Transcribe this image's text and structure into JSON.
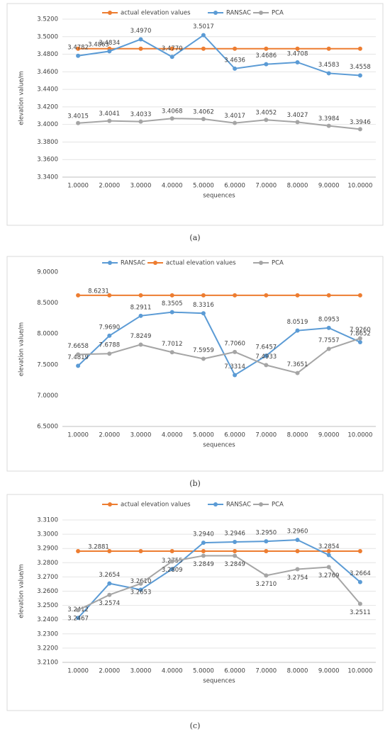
{
  "chart_data": [
    {
      "type": "line",
      "caption": "(a)",
      "ylabel": "elevation value/m",
      "xlabel": "sequences",
      "categories": [
        "1.0000",
        "2.0000",
        "3.0000",
        "4.0000",
        "5.0000",
        "6.0000",
        "7.0000",
        "8.0000",
        "9.0000",
        "10.0000"
      ],
      "ylim": [
        3.34,
        3.52
      ],
      "grid": true,
      "yticks": [
        {
          "value": 3.34,
          "label": "3.3400"
        },
        {
          "value": 3.36,
          "label": "3.3600"
        },
        {
          "value": 3.38,
          "label": "3.3800"
        },
        {
          "value": 3.4,
          "label": "3.4000"
        },
        {
          "value": 3.42,
          "label": "3.4200"
        },
        {
          "value": 3.44,
          "label": "3.4400"
        },
        {
          "value": 3.46,
          "label": "3.4600"
        },
        {
          "value": 3.48,
          "label": "3.4800"
        },
        {
          "value": 3.5,
          "label": "3.5000"
        },
        {
          "value": 3.52,
          "label": "3.5200"
        }
      ],
      "series": [
        {
          "name": "actual elevation values",
          "color": "#ed7d31",
          "values": [
            3.4863,
            3.4863,
            3.4863,
            3.4863,
            3.4863,
            3.4863,
            3.4863,
            3.4863,
            3.4863,
            3.4863
          ],
          "value_labels": [
            "3.4863",
            null,
            null,
            null,
            null,
            null,
            null,
            null,
            null,
            null
          ]
        },
        {
          "name": "RANSAC",
          "color": "#5b9bd5",
          "values": [
            3.4782,
            3.4834,
            3.497,
            3.477,
            3.5017,
            3.4636,
            3.4686,
            3.4708,
            3.4583,
            3.4558
          ],
          "value_labels": [
            "3.4782",
            "3.4834",
            "3.4970",
            "3.4770",
            "3.5017",
            "3.4636",
            "3.4686",
            "3.4708",
            "3.4583",
            "3.4558"
          ]
        },
        {
          "name": "PCA",
          "color": "#a5a5a5",
          "values": [
            3.4015,
            3.4041,
            3.4033,
            3.4068,
            3.4062,
            3.4017,
            3.4052,
            3.4027,
            3.3984,
            3.3946
          ],
          "value_labels": [
            "3.4015",
            "3.4041",
            "3.4033",
            "3.4068",
            "3.4062",
            "3.4017",
            "3.4052",
            "3.4027",
            "3.3984",
            "3.3946"
          ]
        }
      ]
    },
    {
      "type": "line",
      "caption": "(b)",
      "ylabel": "elevation value/m",
      "xlabel": "sequences",
      "categories": [
        "1.0000",
        "2.0000",
        "3.0000",
        "4.0000",
        "5.0000",
        "6.0000",
        "7.0000",
        "8.0000",
        "9.0000",
        "10.0000"
      ],
      "ylim": [
        6.5,
        9.0
      ],
      "grid": false,
      "yticks": [
        {
          "value": 6.5,
          "label": "6.5000"
        },
        {
          "value": 7.0,
          "label": "7.0000"
        },
        {
          "value": 7.5,
          "label": "7.5000"
        },
        {
          "value": 8.0,
          "label": "8.0000"
        },
        {
          "value": 8.5,
          "label": "8.5000"
        },
        {
          "value": 9.0,
          "label": "9.0000"
        }
      ],
      "series": [
        {
          "name": "RANSAC",
          "color": "#5b9bd5",
          "values": [
            7.4819,
            7.969,
            8.2911,
            8.3505,
            8.3316,
            7.3314,
            7.6457,
            8.0519,
            8.0953,
            7.8652
          ],
          "value_labels": [
            "7.4819",
            "7.9690",
            "8.2911",
            "8.3505",
            "8.3316",
            "7.3314",
            "7.6457",
            "8.0519",
            "8.0953",
            "7.8652"
          ]
        },
        {
          "name": "actual elevation values",
          "color": "#ed7d31",
          "values": [
            8.6231,
            8.6231,
            8.6231,
            8.6231,
            8.6231,
            8.6231,
            8.6231,
            8.6231,
            8.6231,
            8.6231
          ],
          "value_labels": [
            "8.6231",
            null,
            null,
            null,
            null,
            null,
            null,
            null,
            null,
            null
          ]
        },
        {
          "name": "PCA",
          "color": "#a5a5a5",
          "values": [
            7.6658,
            7.6788,
            7.8249,
            7.7012,
            7.5959,
            7.706,
            7.4933,
            7.3651,
            7.7557,
            7.926
          ],
          "value_labels": [
            "7.6658",
            "7.6788",
            "7.8249",
            "7.7012",
            "7.5959",
            "7.7060",
            "7.4933",
            "7.3651",
            "7.7557",
            "7.9260"
          ]
        }
      ]
    },
    {
      "type": "line",
      "caption": "(c)",
      "ylabel": "elevation value/m",
      "xlabel": "sequences",
      "categories": [
        "1.0000",
        "2.0000",
        "3.0000",
        "4.0000",
        "5.0000",
        "6.0000",
        "7.0000",
        "8.0000",
        "9.0000",
        "10.0000"
      ],
      "ylim": [
        3.21,
        3.31
      ],
      "grid": true,
      "yticks": [
        {
          "value": 3.21,
          "label": "3.2100"
        },
        {
          "value": 3.22,
          "label": "3.2200"
        },
        {
          "value": 3.23,
          "label": "3.2300"
        },
        {
          "value": 3.24,
          "label": "3.2400"
        },
        {
          "value": 3.25,
          "label": "3.2500"
        },
        {
          "value": 3.26,
          "label": "3.2600"
        },
        {
          "value": 3.27,
          "label": "3.2700"
        },
        {
          "value": 3.28,
          "label": "3.2800"
        },
        {
          "value": 3.29,
          "label": "3.2900"
        },
        {
          "value": 3.3,
          "label": "3.3000"
        },
        {
          "value": 3.31,
          "label": "3.3100"
        }
      ],
      "series": [
        {
          "name": "actual elevation values",
          "color": "#ed7d31",
          "values": [
            3.2881,
            3.2881,
            3.2881,
            3.2881,
            3.2881,
            3.2881,
            3.2881,
            3.2881,
            3.2881,
            3.2881
          ],
          "value_labels": [
            "3.2881",
            null,
            null,
            null,
            null,
            null,
            null,
            null,
            null,
            null
          ]
        },
        {
          "name": "RANSAC",
          "color": "#5b9bd5",
          "values": [
            3.2412,
            3.2654,
            3.261,
            3.2755,
            3.294,
            3.2946,
            3.295,
            3.296,
            3.2854,
            3.2664
          ],
          "value_labels": [
            "3.2412",
            "3.2654",
            "3.2610",
            "3.2755",
            "3.2940",
            "3.2946",
            "3.2950",
            "3.2960",
            "3.2854",
            "3.2664"
          ]
        },
        {
          "name": "PCA",
          "color": "#a5a5a5",
          "values": [
            3.2467,
            3.2574,
            3.2653,
            3.2809,
            3.2849,
            3.2849,
            3.271,
            3.2754,
            3.2769,
            3.2511
          ],
          "value_labels": [
            "3.2467",
            "3.2574",
            "3.2653",
            "3.2809",
            "3.2849",
            "3.2849",
            "3.2710",
            "3.2754",
            "3.2769",
            "3.2511"
          ]
        }
      ]
    }
  ]
}
